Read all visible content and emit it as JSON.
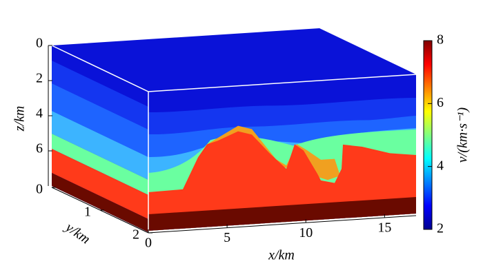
{
  "chart_data": {
    "type": "volume",
    "x_label": "x/km",
    "y_label": "y/km",
    "z_label": "z/km",
    "colorbar_label": "v/(km·s⁻¹)",
    "xlim": [
      0,
      17
    ],
    "xticks": [
      0,
      5,
      10,
      15
    ],
    "ylim": [
      0,
      2
    ],
    "yticks": [
      0,
      1,
      2
    ],
    "zlim": [
      0,
      8
    ],
    "zticks": [
      0,
      2,
      4,
      6
    ],
    "clim": [
      2,
      8
    ],
    "cticks": [
      2,
      4,
      6,
      8
    ],
    "colormap": "jet"
  }
}
